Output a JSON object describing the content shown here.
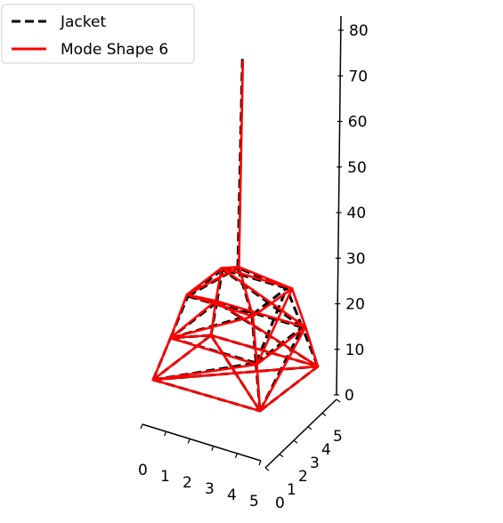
{
  "chart_data": {
    "type": "line",
    "title": "",
    "projection": "3d",
    "legend": {
      "placement": "top-left",
      "entries": [
        {
          "label": "Jacket",
          "color": "#000000",
          "style": "dashed"
        },
        {
          "label": "Mode Shape 6",
          "color": "#ff0000",
          "style": "solid"
        }
      ]
    },
    "axes": {
      "x": {
        "ticks": [
          "0",
          "1",
          "2",
          "3",
          "4",
          "5"
        ],
        "range": [
          0,
          5
        ]
      },
      "y": {
        "ticks": [
          "0",
          "1",
          "2",
          "3",
          "4",
          "5"
        ],
        "range": [
          0,
          5
        ]
      },
      "z": {
        "ticks": [
          "0",
          "10",
          "20",
          "30",
          "40",
          "50",
          "60",
          "70",
          "80"
        ],
        "range": [
          0,
          80
        ]
      }
    },
    "series": [
      {
        "name": "Jacket",
        "color": "#000000",
        "style": "dashed",
        "segments": [
          [
            [
              0,
              0,
              0
            ],
            [
              5,
              0,
              0
            ]
          ],
          [
            [
              5,
              0,
              0
            ],
            [
              5,
              5,
              0
            ]
          ],
          [
            [
              5,
              5,
              0
            ],
            [
              0,
              5,
              0
            ]
          ],
          [
            [
              0,
              5,
              0
            ],
            [
              0,
              0,
              0
            ]
          ],
          [
            [
              0,
              0,
              0
            ],
            [
              5,
              5,
              0
            ]
          ],
          [
            [
              5,
              0,
              0
            ],
            [
              0,
              5,
              0
            ]
          ],
          [
            [
              0,
              0,
              0
            ],
            [
              0.5,
              0.5,
              10
            ]
          ],
          [
            [
              5,
              0,
              0
            ],
            [
              4.5,
              0.5,
              10
            ]
          ],
          [
            [
              5,
              5,
              0
            ],
            [
              4.5,
              4.5,
              10
            ]
          ],
          [
            [
              0,
              5,
              0
            ],
            [
              0.5,
              4.5,
              10
            ]
          ],
          [
            [
              0.5,
              0.5,
              10
            ],
            [
              4.5,
              0.5,
              10
            ]
          ],
          [
            [
              4.5,
              0.5,
              10
            ],
            [
              4.5,
              4.5,
              10
            ]
          ],
          [
            [
              4.5,
              4.5,
              10
            ],
            [
              0.5,
              4.5,
              10
            ]
          ],
          [
            [
              0.5,
              4.5,
              10
            ],
            [
              0.5,
              0.5,
              10
            ]
          ],
          [
            [
              0,
              0,
              0
            ],
            [
              4.5,
              0.5,
              10
            ]
          ],
          [
            [
              5,
              0,
              0
            ],
            [
              4.5,
              4.5,
              10
            ]
          ],
          [
            [
              5,
              5,
              0
            ],
            [
              0.5,
              4.5,
              10
            ]
          ],
          [
            [
              0,
              5,
              0
            ],
            [
              0.5,
              0.5,
              10
            ]
          ],
          [
            [
              0.5,
              0.5,
              10
            ],
            [
              1,
              1,
              20
            ]
          ],
          [
            [
              4.5,
              0.5,
              10
            ],
            [
              4,
              1,
              20
            ]
          ],
          [
            [
              4.5,
              4.5,
              10
            ],
            [
              4,
              4,
              20
            ]
          ],
          [
            [
              0.5,
              4.5,
              10
            ],
            [
              1,
              4,
              20
            ]
          ],
          [
            [
              1,
              1,
              20
            ],
            [
              4,
              1,
              20
            ]
          ],
          [
            [
              4,
              1,
              20
            ],
            [
              4,
              4,
              20
            ]
          ],
          [
            [
              4,
              4,
              20
            ],
            [
              1,
              4,
              20
            ]
          ],
          [
            [
              1,
              4,
              20
            ],
            [
              1,
              1,
              20
            ]
          ],
          [
            [
              0.5,
              0.5,
              10
            ],
            [
              4,
              1,
              20
            ]
          ],
          [
            [
              4.5,
              0.5,
              10
            ],
            [
              4,
              4,
              20
            ]
          ],
          [
            [
              4.5,
              4.5,
              10
            ],
            [
              1,
              4,
              20
            ]
          ],
          [
            [
              0.5,
              4.5,
              10
            ],
            [
              1,
              1,
              20
            ]
          ],
          [
            [
              1,
              1,
              20
            ],
            [
              2.5,
              2.5,
              26
            ]
          ],
          [
            [
              4,
              1,
              20
            ],
            [
              2.5,
              2.5,
              26
            ]
          ],
          [
            [
              4,
              4,
              20
            ],
            [
              2.5,
              2.5,
              26
            ]
          ],
          [
            [
              1,
              4,
              20
            ],
            [
              2.5,
              2.5,
              26
            ]
          ],
          [
            [
              2.5,
              2.5,
              26
            ],
            [
              2.5,
              2.5,
              78
            ]
          ]
        ]
      },
      {
        "name": "Mode Shape 6",
        "color": "#ff0000",
        "style": "solid",
        "segments": [
          [
            [
              0,
              0,
              0
            ],
            [
              5,
              0,
              0
            ]
          ],
          [
            [
              5,
              0,
              0
            ],
            [
              5,
              5,
              0
            ]
          ],
          [
            [
              5,
              5,
              0
            ],
            [
              0,
              5,
              0
            ]
          ],
          [
            [
              0,
              5,
              0
            ],
            [
              0,
              0,
              0
            ]
          ],
          [
            [
              0,
              0,
              0
            ],
            [
              5,
              5,
              0
            ]
          ],
          [
            [
              5,
              0,
              0
            ],
            [
              0,
              5,
              0
            ]
          ],
          [
            [
              0,
              0,
              0
            ],
            [
              0.5,
              0.5,
              10
            ]
          ],
          [
            [
              5,
              0,
              0
            ],
            [
              4.6,
              0.4,
              10
            ]
          ],
          [
            [
              5,
              5,
              0
            ],
            [
              4.6,
              4.6,
              10
            ]
          ],
          [
            [
              0,
              5,
              0
            ],
            [
              0.4,
              4.6,
              10
            ]
          ],
          [
            [
              0.5,
              0.5,
              10
            ],
            [
              4.6,
              0.4,
              10
            ]
          ],
          [
            [
              4.6,
              0.4,
              10
            ],
            [
              4.6,
              4.6,
              10
            ]
          ],
          [
            [
              4.6,
              4.6,
              10
            ],
            [
              0.4,
              4.6,
              10
            ]
          ],
          [
            [
              0.4,
              4.6,
              10
            ],
            [
              0.5,
              0.5,
              10
            ]
          ],
          [
            [
              0,
              0,
              0
            ],
            [
              4.6,
              0.4,
              10
            ]
          ],
          [
            [
              5,
              0,
              0
            ],
            [
              4.6,
              4.6,
              10
            ]
          ],
          [
            [
              5,
              5,
              0
            ],
            [
              0.4,
              4.6,
              10
            ]
          ],
          [
            [
              0,
              5,
              0
            ],
            [
              0.5,
              0.5,
              10
            ]
          ],
          [
            [
              0.5,
              0.5,
              10
            ],
            [
              0.9,
              1.1,
              20
            ]
          ],
          [
            [
              4.6,
              0.4,
              10
            ],
            [
              4.1,
              0.9,
              20
            ]
          ],
          [
            [
              4.6,
              4.6,
              10
            ],
            [
              4.2,
              4.1,
              20
            ]
          ],
          [
            [
              0.4,
              4.6,
              10
            ],
            [
              0.9,
              4.1,
              20
            ]
          ],
          [
            [
              0.9,
              1.1,
              20
            ],
            [
              4.1,
              0.9,
              20
            ]
          ],
          [
            [
              4.1,
              0.9,
              20
            ],
            [
              4.2,
              4.1,
              20
            ]
          ],
          [
            [
              4.2,
              4.1,
              20
            ],
            [
              0.9,
              4.1,
              20
            ]
          ],
          [
            [
              0.9,
              4.1,
              20
            ],
            [
              0.9,
              1.1,
              20
            ]
          ],
          [
            [
              0.5,
              0.5,
              10
            ],
            [
              4.1,
              0.9,
              20
            ]
          ],
          [
            [
              4.6,
              0.4,
              10
            ],
            [
              4.2,
              4.1,
              20
            ]
          ],
          [
            [
              4.6,
              4.6,
              10
            ],
            [
              0.9,
              4.1,
              20
            ]
          ],
          [
            [
              0.4,
              4.6,
              10
            ],
            [
              0.9,
              1.1,
              20
            ]
          ],
          [
            [
              0.9,
              1.1,
              20
            ],
            [
              2.5,
              2.6,
              26
            ]
          ],
          [
            [
              4.1,
              0.9,
              20
            ],
            [
              2.5,
              2.6,
              26
            ]
          ],
          [
            [
              4.2,
              4.1,
              20
            ],
            [
              2.5,
              2.6,
              26
            ]
          ],
          [
            [
              0.9,
              4.1,
              20
            ],
            [
              2.5,
              2.6,
              26
            ]
          ],
          [
            [
              2.5,
              2.6,
              26
            ],
            [
              2.5,
              2.55,
              77
            ]
          ]
        ]
      }
    ]
  }
}
